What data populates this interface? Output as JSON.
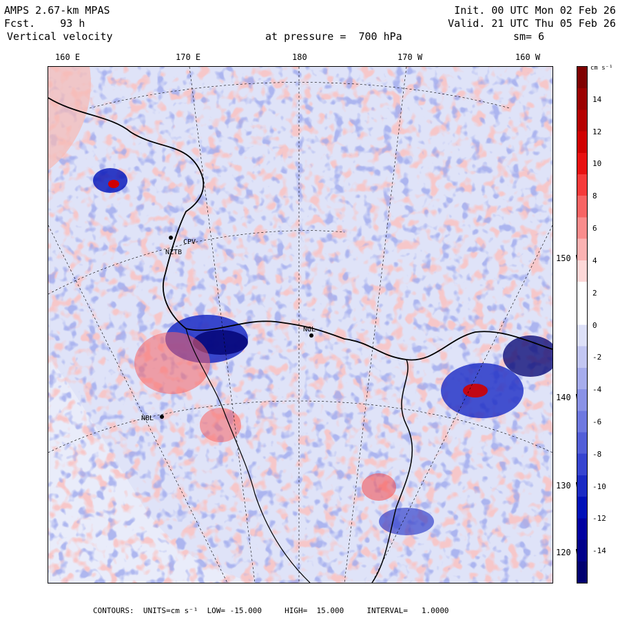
{
  "header": {
    "model": "AMPS 2.67-km MPAS",
    "fcst_label": "Fcst.",
    "fcst_value": "93 h",
    "field": "Vertical velocity",
    "init": "Init. 00 UTC Mon 02 Feb 26",
    "valid": "Valid. 21 UTC Thu 05 Feb 26",
    "level": "at pressure =  700 hPa",
    "smooth": "sm= 6"
  },
  "map": {
    "longitude_labels": [
      "160 E",
      "170 E",
      "180",
      "170 W",
      "160 W"
    ],
    "latitude_labels": [
      "150 W",
      "140 W",
      "130 W",
      "120 W"
    ],
    "stations": [
      "CPV",
      "NZTB",
      "NGL",
      "NBL"
    ],
    "colors": {
      "positive_strong": "#8b0000",
      "positive_light": "#f8c8c4",
      "neutral": "#ffffff",
      "negative_light": "#dfe3f8",
      "negative_strong": "#00007f",
      "coastline": "#000000"
    }
  },
  "colorbar": {
    "units": "cm s⁻¹",
    "ticks": [
      "14",
      "12",
      "10",
      "8",
      "6",
      "4",
      "2",
      "0",
      "-2",
      "-4",
      "-6",
      "-8",
      "-10",
      "-12",
      "-14"
    ],
    "colors": [
      "#7f0000",
      "#9b0000",
      "#b50000",
      "#d00000",
      "#e81010",
      "#f53a3a",
      "#f76464",
      "#f98c8c",
      "#fbb2b2",
      "#fdd8d8",
      "#ffffff",
      "#ffffff",
      "#dde0f8",
      "#c2c6f2",
      "#a6acec",
      "#8a92e6",
      "#6e78e0",
      "#525ed8",
      "#3644d0",
      "#1a2ac4",
      "#0010b8",
      "#0000a0",
      "#00008a",
      "#000070"
    ]
  },
  "footer": "CONTOURS:  UNITS=cm s⁻¹  LOW= -15.000     HIGH=  15.000     INTERVAL=   1.0000"
}
